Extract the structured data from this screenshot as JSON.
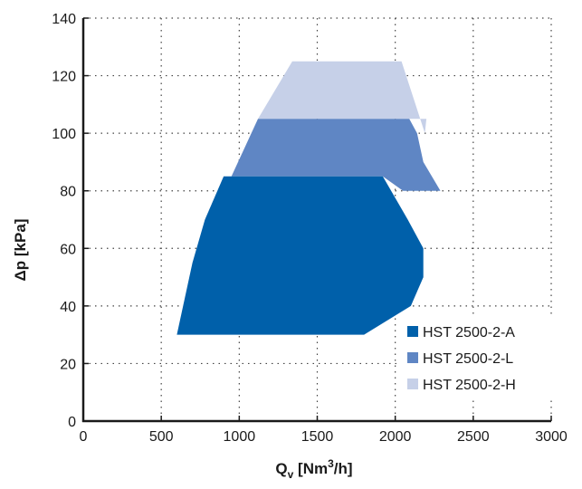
{
  "chart_data": {
    "type": "area",
    "xlabel": {
      "main": "Q",
      "sub": "v",
      "units_pre": " [Nm",
      "units_sup": "3",
      "units_post": "/h]"
    },
    "ylabel": "Δp [kPa]",
    "xlim": [
      0,
      3000
    ],
    "ylim": [
      0,
      140
    ],
    "xticks": [
      0,
      500,
      1000,
      1500,
      2000,
      2500,
      3000
    ],
    "yticks": [
      0,
      20,
      40,
      60,
      80,
      100,
      120,
      140
    ],
    "xtick_labels": [
      "0",
      "500",
      "1000",
      "1500",
      "2000",
      "2500",
      "3000"
    ],
    "ytick_labels": [
      "0",
      "20",
      "40",
      "60",
      "80",
      "100",
      "120",
      "140"
    ],
    "grid": true,
    "legend_position": "bottom-right",
    "series": [
      {
        "name": "HST 2500-2-H",
        "color": "#c6d0e8",
        "points": [
          [
            1120,
            105
          ],
          [
            1340,
            125
          ],
          [
            2040,
            125
          ],
          [
            2130,
            110
          ],
          [
            2190,
            100
          ],
          [
            2200,
            105
          ]
        ]
      },
      {
        "name": "HST 2500-2-L",
        "color": "#5f86c4",
        "points": [
          [
            950,
            85
          ],
          [
            1120,
            105
          ],
          [
            2090,
            105
          ],
          [
            2140,
            100
          ],
          [
            2180,
            90
          ],
          [
            2290,
            80
          ],
          [
            2050,
            80
          ],
          [
            1920,
            85
          ]
        ]
      },
      {
        "name": "HST 2500-2-A",
        "color": "#0060aa",
        "points": [
          [
            600,
            30
          ],
          [
            700,
            55
          ],
          [
            780,
            70
          ],
          [
            900,
            85
          ],
          [
            1920,
            85
          ],
          [
            2080,
            70
          ],
          [
            2180,
            60
          ],
          [
            2180,
            50
          ],
          [
            2100,
            40
          ],
          [
            1800,
            30
          ]
        ]
      }
    ],
    "legend": [
      {
        "label": "HST 2500-2-A",
        "color": "#0060aa"
      },
      {
        "label": "HST 2500-2-L",
        "color": "#5f86c4"
      },
      {
        "label": "HST 2500-2-H",
        "color": "#c6d0e8"
      }
    ]
  }
}
